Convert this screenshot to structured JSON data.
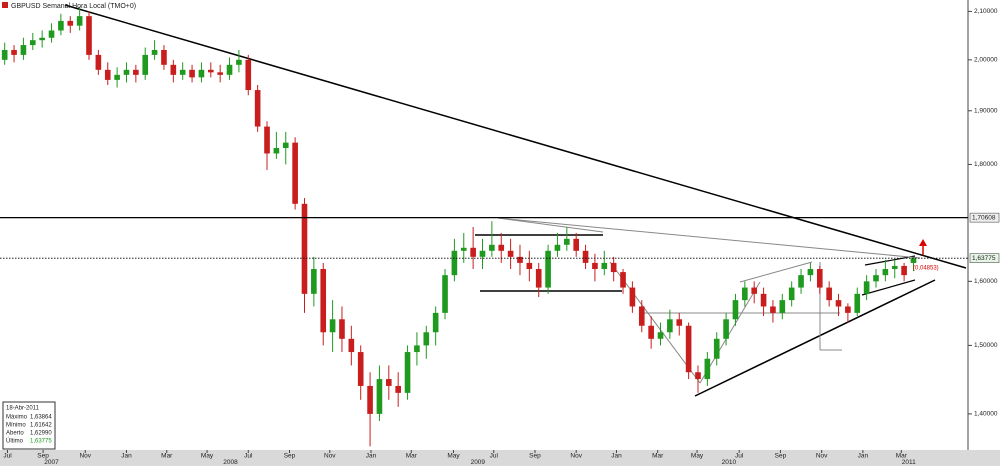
{
  "chart_data": {
    "type": "candlestick",
    "title": "GBPUSD Semanal Hora Local (TMO+0)",
    "log_scale": true,
    "up_color": "#1f9a1f",
    "down_color": "#c81e1e",
    "ylim": [
      1.35,
      2.12
    ],
    "yticks": [
      {
        "value": 1.4,
        "label": "1,40000"
      },
      {
        "value": 1.5,
        "label": "1,50000"
      },
      {
        "value": 1.6,
        "label": "1,60000"
      },
      {
        "value": 1.8,
        "label": "1,80000"
      },
      {
        "value": 1.9,
        "label": "1,90000"
      },
      {
        "value": 2.0,
        "label": "2,00000"
      },
      {
        "value": 2.1,
        "label": "2,10000"
      }
    ],
    "hlines": [
      {
        "value": 1.70608,
        "label": "1,70608",
        "style": "solid"
      },
      {
        "value": 1.63775,
        "label": "1,63775",
        "style": "dotted"
      }
    ],
    "xlim": [
      -0.5,
      102.5
    ],
    "xticks": [
      {
        "value": 0.3,
        "label": "Jul"
      },
      {
        "value": 4.1,
        "label": "Sep"
      },
      {
        "value": 8.6,
        "label": "Nov"
      },
      {
        "value": 13,
        "label": "Jan"
      },
      {
        "value": 17.3,
        "label": "Mar"
      },
      {
        "value": 21.6,
        "label": "May"
      },
      {
        "value": 26,
        "label": "Jul"
      },
      {
        "value": 30.4,
        "label": "Sep"
      },
      {
        "value": 34.7,
        "label": "Nov"
      },
      {
        "value": 39.1,
        "label": "Jan"
      },
      {
        "value": 43.4,
        "label": "Mar"
      },
      {
        "value": 47.9,
        "label": "May"
      },
      {
        "value": 52.2,
        "label": "Jul"
      },
      {
        "value": 56.6,
        "label": "Sep"
      },
      {
        "value": 61,
        "label": "Nov"
      },
      {
        "value": 65.3,
        "label": "Jan"
      },
      {
        "value": 69.7,
        "label": "Mar"
      },
      {
        "value": 73.9,
        "label": "May"
      },
      {
        "value": 78.4,
        "label": "Jul"
      },
      {
        "value": 82.8,
        "label": "Sep"
      },
      {
        "value": 87.2,
        "label": "Nov"
      },
      {
        "value": 91.6,
        "label": "Jan"
      },
      {
        "value": 95.7,
        "label": "Mar"
      }
    ],
    "years": [
      {
        "value": 5,
        "label": "2007"
      },
      {
        "value": 24.1,
        "label": "2008"
      },
      {
        "value": 50.5,
        "label": "2009"
      },
      {
        "value": 77.3,
        "label": "2010"
      },
      {
        "value": 96.5,
        "label": "2011"
      }
    ],
    "ohlc": [
      [
        2.0,
        2.035,
        1.99,
        2.02
      ],
      [
        2.02,
        2.03,
        1.995,
        2.01
      ],
      [
        2.01,
        2.045,
        2.0,
        2.03
      ],
      [
        2.03,
        2.055,
        2.02,
        2.04
      ],
      [
        2.04,
        2.06,
        2.025,
        2.045
      ],
      [
        2.045,
        2.075,
        2.035,
        2.06
      ],
      [
        2.06,
        2.095,
        2.05,
        2.08
      ],
      [
        2.08,
        2.09,
        2.055,
        2.07
      ],
      [
        2.07,
        2.11,
        2.06,
        2.09
      ],
      [
        2.09,
        2.1,
        2.0,
        2.01
      ],
      [
        2.01,
        2.02,
        1.97,
        1.98
      ],
      [
        1.98,
        1.995,
        1.95,
        1.96
      ],
      [
        1.96,
        1.985,
        1.945,
        1.97
      ],
      [
        1.97,
        1.995,
        1.955,
        1.98
      ],
      [
        1.98,
        1.99,
        1.955,
        1.97
      ],
      [
        1.97,
        2.025,
        1.96,
        2.01
      ],
      [
        2.01,
        2.04,
        2.0,
        2.02
      ],
      [
        2.02,
        2.03,
        1.98,
        1.99
      ],
      [
        1.99,
        2.0,
        1.955,
        1.97
      ],
      [
        1.97,
        1.995,
        1.96,
        1.98
      ],
      [
        1.98,
        1.99,
        1.955,
        1.965
      ],
      [
        1.965,
        1.995,
        1.955,
        1.98
      ],
      [
        1.98,
        1.995,
        1.965,
        1.975
      ],
      [
        1.975,
        1.99,
        1.955,
        1.97
      ],
      [
        1.97,
        2.005,
        1.96,
        1.99
      ],
      [
        1.99,
        2.02,
        1.975,
        2.0
      ],
      [
        2.0,
        2.01,
        1.93,
        1.94
      ],
      [
        1.94,
        1.95,
        1.86,
        1.87
      ],
      [
        1.87,
        1.88,
        1.79,
        1.82
      ],
      [
        1.82,
        1.86,
        1.81,
        1.83
      ],
      [
        1.83,
        1.86,
        1.8,
        1.84
      ],
      [
        1.84,
        1.85,
        1.72,
        1.73
      ],
      [
        1.73,
        1.74,
        1.55,
        1.58
      ],
      [
        1.58,
        1.64,
        1.56,
        1.62
      ],
      [
        1.62,
        1.63,
        1.5,
        1.52
      ],
      [
        1.52,
        1.57,
        1.49,
        1.54
      ],
      [
        1.54,
        1.56,
        1.49,
        1.51
      ],
      [
        1.51,
        1.53,
        1.47,
        1.49
      ],
      [
        1.49,
        1.5,
        1.42,
        1.44
      ],
      [
        1.44,
        1.46,
        1.355,
        1.4
      ],
      [
        1.4,
        1.47,
        1.39,
        1.45
      ],
      [
        1.45,
        1.47,
        1.42,
        1.44
      ],
      [
        1.44,
        1.46,
        1.41,
        1.43
      ],
      [
        1.43,
        1.5,
        1.42,
        1.49
      ],
      [
        1.49,
        1.52,
        1.47,
        1.5
      ],
      [
        1.5,
        1.53,
        1.48,
        1.52
      ],
      [
        1.52,
        1.56,
        1.5,
        1.55
      ],
      [
        1.55,
        1.62,
        1.54,
        1.61
      ],
      [
        1.61,
        1.67,
        1.6,
        1.65
      ],
      [
        1.65,
        1.68,
        1.63,
        1.655
      ],
      [
        1.655,
        1.69,
        1.62,
        1.64
      ],
      [
        1.64,
        1.67,
        1.62,
        1.65
      ],
      [
        1.65,
        1.7,
        1.64,
        1.66
      ],
      [
        1.66,
        1.68,
        1.63,
        1.65
      ],
      [
        1.65,
        1.67,
        1.62,
        1.64
      ],
      [
        1.64,
        1.66,
        1.61,
        1.63
      ],
      [
        1.63,
        1.65,
        1.6,
        1.62
      ],
      [
        1.62,
        1.63,
        1.575,
        1.59
      ],
      [
        1.59,
        1.66,
        1.58,
        1.65
      ],
      [
        1.65,
        1.68,
        1.64,
        1.66
      ],
      [
        1.66,
        1.69,
        1.65,
        1.67
      ],
      [
        1.67,
        1.68,
        1.64,
        1.65
      ],
      [
        1.65,
        1.66,
        1.62,
        1.63
      ],
      [
        1.63,
        1.645,
        1.6,
        1.62
      ],
      [
        1.62,
        1.65,
        1.61,
        1.63
      ],
      [
        1.63,
        1.64,
        1.6,
        1.615
      ],
      [
        1.615,
        1.62,
        1.58,
        1.59
      ],
      [
        1.59,
        1.6,
        1.55,
        1.56
      ],
      [
        1.56,
        1.57,
        1.52,
        1.53
      ],
      [
        1.53,
        1.545,
        1.495,
        1.51
      ],
      [
        1.51,
        1.535,
        1.5,
        1.52
      ],
      [
        1.52,
        1.555,
        1.51,
        1.54
      ],
      [
        1.54,
        1.55,
        1.515,
        1.53
      ],
      [
        1.53,
        1.535,
        1.45,
        1.46
      ],
      [
        1.46,
        1.47,
        1.43,
        1.45
      ],
      [
        1.45,
        1.49,
        1.44,
        1.48
      ],
      [
        1.48,
        1.52,
        1.47,
        1.51
      ],
      [
        1.51,
        1.55,
        1.5,
        1.54
      ],
      [
        1.54,
        1.58,
        1.53,
        1.57
      ],
      [
        1.57,
        1.6,
        1.56,
        1.59
      ],
      [
        1.59,
        1.6,
        1.565,
        1.58
      ],
      [
        1.58,
        1.59,
        1.545,
        1.56
      ],
      [
        1.56,
        1.57,
        1.535,
        1.55
      ],
      [
        1.55,
        1.58,
        1.54,
        1.57
      ],
      [
        1.57,
        1.6,
        1.56,
        1.59
      ],
      [
        1.59,
        1.62,
        1.58,
        1.61
      ],
      [
        1.61,
        1.63,
        1.6,
        1.62
      ],
      [
        1.62,
        1.625,
        1.58,
        1.59
      ],
      [
        1.59,
        1.6,
        1.56,
        1.57
      ],
      [
        1.57,
        1.58,
        1.545,
        1.56
      ],
      [
        1.56,
        1.565,
        1.535,
        1.55
      ],
      [
        1.55,
        1.59,
        1.545,
        1.58
      ],
      [
        1.58,
        1.61,
        1.57,
        1.6
      ],
      [
        1.6,
        1.62,
        1.59,
        1.61
      ],
      [
        1.61,
        1.635,
        1.6,
        1.62
      ],
      [
        1.62,
        1.635,
        1.605,
        1.625
      ],
      [
        1.625,
        1.63,
        1.6,
        1.61
      ],
      [
        1.6299,
        1.63864,
        1.61642,
        1.63775
      ]
    ],
    "info": {
      "date": "18-Abr-2011",
      "rows": [
        [
          "Máximo",
          "1,63864"
        ],
        [
          "Mínimo",
          "1,61642"
        ],
        [
          "Aberto",
          "1,62990"
        ],
        [
          "Último",
          "1,63775"
        ]
      ]
    },
    "annotation": "(0,04853)"
  }
}
